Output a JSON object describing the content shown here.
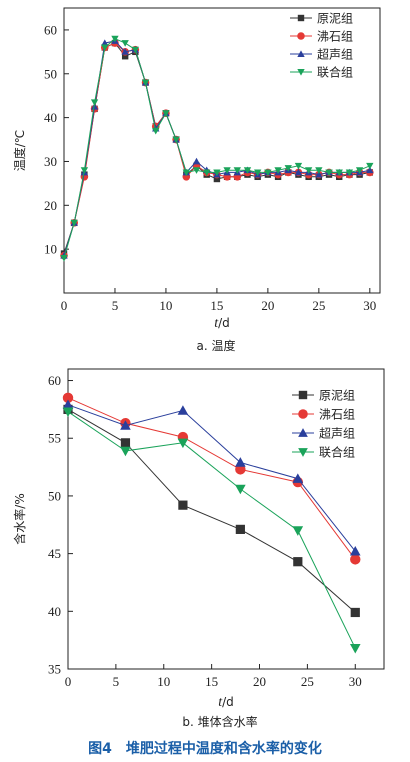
{
  "figure_title": "图4　堆肥过程中温度和含水率的变化",
  "chart_data": [
    {
      "type": "line",
      "subtitle": "a. 温度",
      "xlabel_var": "t",
      "xlabel_unit": "/d",
      "ylabel": "温度/℃",
      "xlim": [
        0,
        31
      ],
      "ylim": [
        0,
        65
      ],
      "xticks": [
        0,
        5,
        10,
        15,
        20,
        25,
        30
      ],
      "yticks": [
        10,
        20,
        30,
        40,
        50,
        60
      ],
      "legend_position": "top-right",
      "x": [
        0,
        1,
        2,
        3,
        4,
        5,
        6,
        7,
        8,
        9,
        10,
        11,
        12,
        13,
        14,
        15,
        16,
        17,
        18,
        19,
        20,
        21,
        22,
        23,
        24,
        25,
        26,
        27,
        28,
        29,
        30
      ],
      "series": [
        {
          "name": "原泥组",
          "color": "#333333",
          "marker": "square",
          "values": [
            9,
            16,
            27,
            42,
            56,
            57,
            54,
            55,
            48,
            38,
            41,
            35,
            27,
            29,
            27,
            26,
            26.5,
            26.5,
            27,
            26.5,
            27,
            26.5,
            27.5,
            27,
            26.5,
            26.5,
            27,
            26.5,
            27,
            27,
            27.5
          ]
        },
        {
          "name": "沸石组",
          "color": "#e53935",
          "marker": "circle",
          "values": [
            8.5,
            16,
            26.5,
            42,
            56,
            57,
            55,
            55.5,
            48,
            38,
            41,
            35,
            26.5,
            29,
            27.5,
            27,
            26.5,
            26.5,
            27.5,
            27,
            27.5,
            27,
            27.5,
            27.5,
            27,
            27,
            27.5,
            27,
            27,
            27.5,
            27.5
          ]
        },
        {
          "name": "超声组",
          "color": "#2a3f9c",
          "marker": "triangle-up",
          "values": [
            8.5,
            16,
            27.5,
            42.5,
            57,
            57.5,
            55,
            55.5,
            48,
            37.5,
            41,
            35,
            27.5,
            30,
            28,
            27,
            27.5,
            27.5,
            28,
            27,
            27.5,
            27.5,
            28,
            27.5,
            27.5,
            27,
            27.5,
            27.5,
            27.5,
            27.5,
            28
          ]
        },
        {
          "name": "联合组",
          "color": "#1aa35a",
          "marker": "triangle-down",
          "values": [
            8,
            16,
            28,
            43.5,
            56,
            58,
            57,
            55.5,
            48,
            37,
            41,
            35,
            27.5,
            28,
            27.5,
            27.5,
            28,
            28,
            28,
            27.5,
            27.5,
            28,
            28.5,
            29,
            28,
            28,
            27.5,
            27.5,
            27.5,
            28,
            29
          ]
        }
      ]
    },
    {
      "type": "line",
      "subtitle": "b. 堆体含水率",
      "xlabel_var": "t",
      "xlabel_unit": "/d",
      "ylabel": "含水率/%",
      "xlim": [
        0,
        33
      ],
      "ylim": [
        35,
        61
      ],
      "xticks": [
        0,
        5,
        10,
        15,
        20,
        25,
        30
      ],
      "yticks": [
        35,
        40,
        45,
        50,
        55,
        60
      ],
      "legend_position": "top-right",
      "x": [
        0,
        6,
        12,
        18,
        24,
        30
      ],
      "series": [
        {
          "name": "原泥组",
          "color": "#333333",
          "marker": "square",
          "values": [
            57.5,
            54.6,
            49.2,
            47.1,
            44.3,
            39.9
          ]
        },
        {
          "name": "沸石组",
          "color": "#e53935",
          "marker": "circle",
          "values": [
            58.5,
            56.3,
            55.1,
            52.3,
            51.2,
            44.5
          ]
        },
        {
          "name": "超声组",
          "color": "#2a3f9c",
          "marker": "triangle-up",
          "values": [
            57.9,
            56.1,
            57.4,
            52.9,
            51.5,
            45.2
          ]
        },
        {
          "name": "联合组",
          "color": "#1aa35a",
          "marker": "triangle-down",
          "values": [
            57.3,
            53.9,
            54.6,
            50.6,
            47.0,
            36.8
          ]
        }
      ]
    }
  ]
}
